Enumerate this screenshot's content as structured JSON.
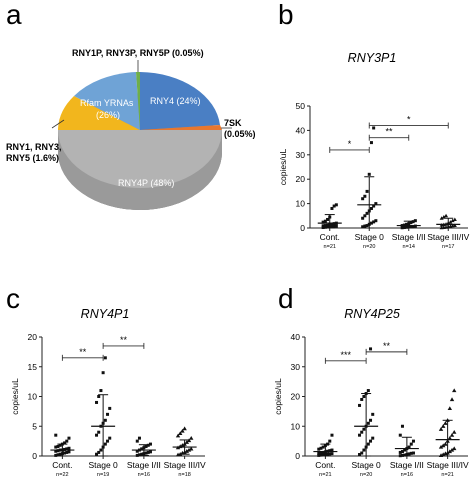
{
  "chart_data": [
    {
      "panel": "a",
      "type": "pie",
      "labels": [
        {
          "text": "RNY1P, RNY3P, RNY5P (0.05%)",
          "value": 0.05,
          "color": "#6fae4a"
        },
        {
          "text": "RNY4 (24%)",
          "value": 24,
          "color": "#4a7fc4"
        },
        {
          "text": "7SK\n(0.05%)",
          "value": 0.05,
          "color": "#e8772e"
        },
        {
          "text": "RNY4P (48%)",
          "value": 48,
          "color": "#a9a9a9"
        },
        {
          "text": "RNY1, RNY3,\nRNY5 (1.6%)",
          "value": 1.6,
          "color": "#f2b61d"
        },
        {
          "text": "Rfam YRNAs\n(26%)",
          "value": 26,
          "color": "#6fa3d6"
        }
      ]
    },
    {
      "panel": "b",
      "type": "scatter",
      "title": "RNY3P1",
      "ylabel": "copies/uL",
      "ylim": [
        0,
        50
      ],
      "yticks": [
        0,
        10,
        20,
        30,
        40,
        50
      ],
      "categories": [
        "Cont.",
        "Stage 0",
        "Stage I/II",
        "Stage III/IV"
      ],
      "n": [
        "n=21",
        "n=20",
        "n=14",
        "n=17"
      ],
      "means": [
        2.0,
        9.5,
        1.0,
        1.5
      ],
      "sd": [
        3.5,
        11.5,
        1.8,
        2.5
      ],
      "points": [
        [
          0.2,
          0.3,
          0.4,
          0.5,
          0.6,
          0.7,
          0.8,
          0.9,
          1.0,
          1.1,
          1.3,
          1.5,
          1.8,
          2.0,
          2.4,
          2.8,
          3.5,
          4.5,
          8.0,
          9.0,
          9.5
        ],
        [
          0.5,
          0.8,
          1.0,
          1.5,
          2.0,
          2.5,
          3.0,
          4.0,
          5.0,
          6.0,
          7.0,
          8.0,
          9.0,
          10.0,
          12.0,
          13.0,
          15.0,
          22.0,
          35.0,
          41.0
        ],
        [
          0.1,
          0.2,
          0.3,
          0.4,
          0.5,
          0.6,
          0.8,
          1.0,
          1.2,
          1.5,
          1.8,
          2.2,
          2.6,
          3.0
        ],
        [
          0.1,
          0.2,
          0.3,
          0.5,
          0.7,
          0.9,
          1.0,
          1.2,
          1.4,
          1.6,
          2.0,
          2.4,
          3.0,
          3.5,
          4.0,
          4.5,
          5.0
        ]
      ],
      "significance": [
        {
          "from": 0,
          "to": 1,
          "label": "*",
          "y": 32
        },
        {
          "from": 1,
          "to": 2,
          "label": "**",
          "y": 37
        },
        {
          "from": 1,
          "to": 3,
          "label": "*",
          "y": 42
        }
      ]
    },
    {
      "panel": "c",
      "type": "scatter",
      "title": "RNY4P1",
      "ylabel": "copies/uL",
      "ylim": [
        0,
        20
      ],
      "yticks": [
        0,
        5,
        10,
        15,
        20
      ],
      "categories": [
        "Cont.",
        "Stage 0",
        "Stage I/II",
        "Stage III/IV"
      ],
      "n": [
        "n=22",
        "n=19",
        "n=16",
        "n=18"
      ],
      "means": [
        1.0,
        5.0,
        1.0,
        1.5
      ],
      "sd": [
        1.0,
        5.3,
        0.9,
        1.2
      ],
      "points": [
        [
          0.1,
          0.2,
          0.3,
          0.4,
          0.5,
          0.6,
          0.7,
          0.8,
          0.9,
          1.0,
          1.0,
          1.1,
          1.2,
          1.3,
          1.5,
          1.6,
          1.8,
          2.0,
          2.2,
          2.5,
          3.0,
          3.5
        ],
        [
          0.3,
          0.6,
          1.0,
          1.5,
          2.0,
          2.5,
          3.0,
          3.5,
          4.0,
          5.0,
          5.5,
          6.0,
          7.0,
          8.0,
          9.0,
          10.0,
          11.0,
          14.0,
          16.5
        ],
        [
          0.1,
          0.2,
          0.3,
          0.4,
          0.5,
          0.6,
          0.7,
          0.8,
          1.0,
          1.2,
          1.4,
          1.6,
          1.8,
          2.0,
          2.5,
          3.0
        ],
        [
          0.2,
          0.3,
          0.5,
          0.6,
          0.8,
          1.0,
          1.2,
          1.4,
          1.6,
          1.8,
          2.0,
          2.3,
          2.6,
          3.0,
          3.4,
          3.8,
          4.2,
          4.6
        ]
      ],
      "significance": [
        {
          "from": 0,
          "to": 1,
          "label": "**",
          "y": 16.5
        },
        {
          "from": 1,
          "to": 2,
          "label": "**",
          "y": 18.5
        }
      ]
    },
    {
      "panel": "d",
      "type": "scatter",
      "title": "RNY4P25",
      "ylabel": "copies/uL",
      "ylim": [
        0,
        40
      ],
      "yticks": [
        0,
        10,
        20,
        30,
        40
      ],
      "categories": [
        "Cont.",
        "Stage 0",
        "Stage I/II",
        "Stage III/IV"
      ],
      "n": [
        "n=21",
        "n=20",
        "n=16",
        "n=21"
      ],
      "means": [
        1.5,
        10.0,
        2.5,
        5.5
      ],
      "sd": [
        2.5,
        11.0,
        3.8,
        6.5
      ],
      "points": [
        [
          0.2,
          0.3,
          0.4,
          0.5,
          0.6,
          0.7,
          0.8,
          0.9,
          1.0,
          1.2,
          1.4,
          1.6,
          1.8,
          2.0,
          2.3,
          2.6,
          3.0,
          3.5,
          4.0,
          5.0,
          7.0
        ],
        [
          0.5,
          1.0,
          2.0,
          3.0,
          4.0,
          5.0,
          6.0,
          7.0,
          8.0,
          9.0,
          10.0,
          11.0,
          12.0,
          14.0,
          17.0,
          19.0,
          20.0,
          21.0,
          22.0,
          36.0
        ],
        [
          0.1,
          0.2,
          0.3,
          0.5,
          0.7,
          0.9,
          1.0,
          1.2,
          1.5,
          2.0,
          2.5,
          3.0,
          4.0,
          5.0,
          7.0,
          10.0
        ],
        [
          0.2,
          0.5,
          0.8,
          1.0,
          1.5,
          2.0,
          2.5,
          3.0,
          3.5,
          4.0,
          5.0,
          6.0,
          7.0,
          8.0,
          9.0,
          10.0,
          11.0,
          12.0,
          16.0,
          19.0,
          22.0
        ]
      ],
      "significance": [
        {
          "from": 0,
          "to": 1,
          "label": "***",
          "y": 32
        },
        {
          "from": 1,
          "to": 2,
          "label": "**",
          "y": 35
        }
      ]
    }
  ]
}
